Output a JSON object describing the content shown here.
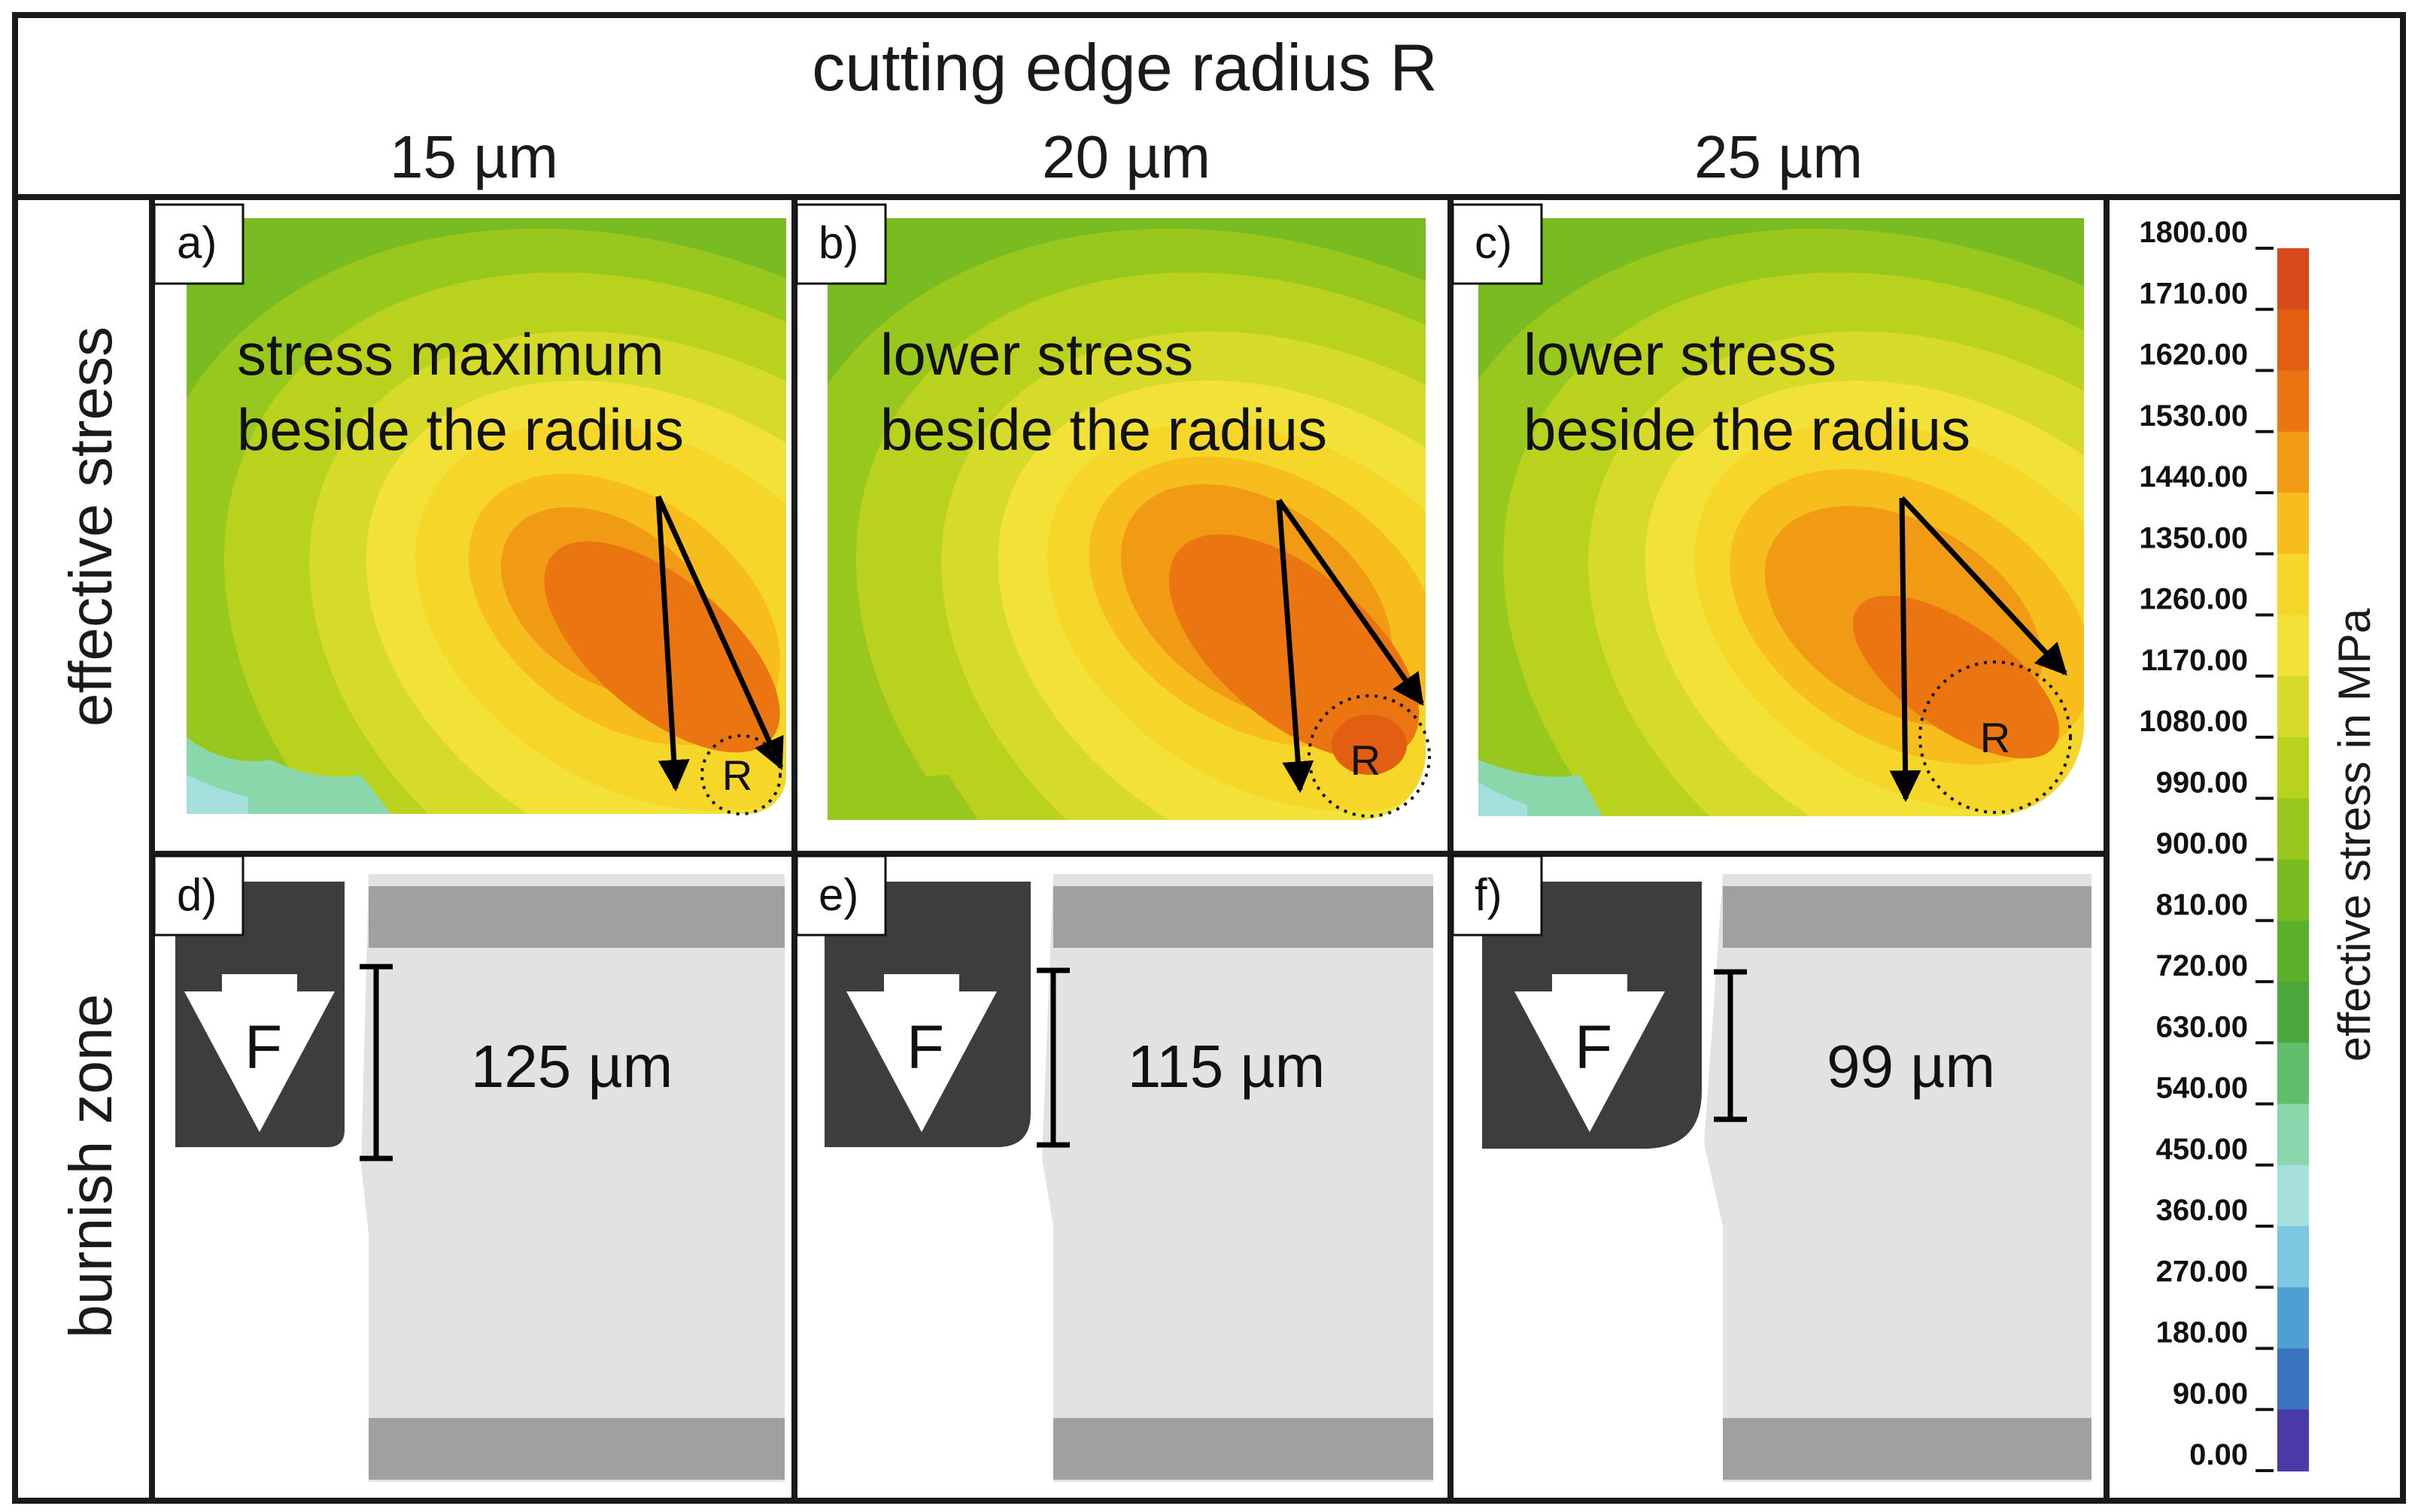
{
  "header": {
    "title": "cutting edge radius R",
    "columns": [
      "15 µm",
      "20 µm",
      "25 µm"
    ]
  },
  "rows": [
    "effective stress",
    "burnish zone"
  ],
  "stress_panels": [
    {
      "label": "a)",
      "line1": "stress maximum",
      "line2": "beside the radius",
      "marker": "R"
    },
    {
      "label": "b)",
      "line1": "lower stress",
      "line2": "beside the radius",
      "marker": "R"
    },
    {
      "label": "c)",
      "line1": "lower stress",
      "line2": "beside the radius",
      "marker": "R"
    }
  ],
  "burnish_panels": [
    {
      "label": "d)",
      "force": "F",
      "value": "125 µm",
      "burnish_um": 125
    },
    {
      "label": "e)",
      "force": "F",
      "value": "115 µm",
      "burnish_um": 115
    },
    {
      "label": "f)",
      "force": "F",
      "value": "99 µm",
      "burnish_um": 99
    }
  ],
  "scale": {
    "title": "effective stress in MPa",
    "ticks": [
      "1800.00",
      "1710.00",
      "1620.00",
      "1530.00",
      "1440.00",
      "1350.00",
      "1260.00",
      "1170.00",
      "1080.00",
      "990.00",
      "900.00",
      "810.00",
      "720.00",
      "630.00",
      "540.00",
      "450.00",
      "360.00",
      "270.00",
      "180.00",
      "90.00",
      "0.00"
    ],
    "colors": [
      "#d84a1a",
      "#e25f12",
      "#ea7511",
      "#f19a14",
      "#f6bd1d",
      "#f7d62a",
      "#f2e238",
      "#d6da28",
      "#b8d21e",
      "#98c71e",
      "#78bc22",
      "#5cb12a",
      "#4aa83a",
      "#5fbe6a",
      "#8ad7ac",
      "#a5e0dc",
      "#7cc8e2",
      "#4f9fd2",
      "#3a72c0",
      "#4a3aa8"
    ]
  }
}
